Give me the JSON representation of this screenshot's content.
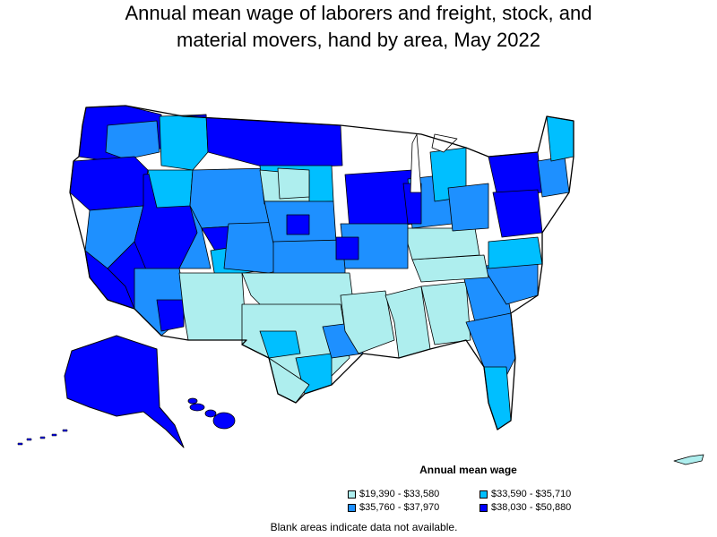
{
  "title": {
    "line1": "Annual mean wage of laborers and freight, stock, and",
    "line2": "material movers, hand by area, May 2022"
  },
  "legend": {
    "title": "Annual mean wage",
    "items": [
      {
        "label": "$19,390 - $33,580",
        "color": "#aeeeee"
      },
      {
        "label": "$33,590 - $35,710",
        "color": "#00bfff"
      },
      {
        "label": "$35,760 - $37,970",
        "color": "#1e90ff"
      },
      {
        "label": "$38,030 - $50,880",
        "color": "#0000ff"
      }
    ]
  },
  "note": "Blank areas indicate data not available.",
  "chart_data": {
    "type": "choropleth",
    "title": "Annual mean wage of laborers and freight, stock, and material movers, hand by area, May 2022",
    "legend_title": "Annual mean wage",
    "bins": [
      {
        "range": "$19,390 - $33,580",
        "min": 19390,
        "max": 33580,
        "color": "#aeeeee"
      },
      {
        "range": "$33,590 - $35,710",
        "min": 33590,
        "max": 35710,
        "color": "#00bfff"
      },
      {
        "range": "$35,760 - $37,970",
        "min": 35760,
        "max": 37970,
        "color": "#1e90ff"
      },
      {
        "range": "$38,030 - $50,880",
        "min": 38030,
        "max": 50880,
        "color": "#0000ff"
      }
    ]
  }
}
